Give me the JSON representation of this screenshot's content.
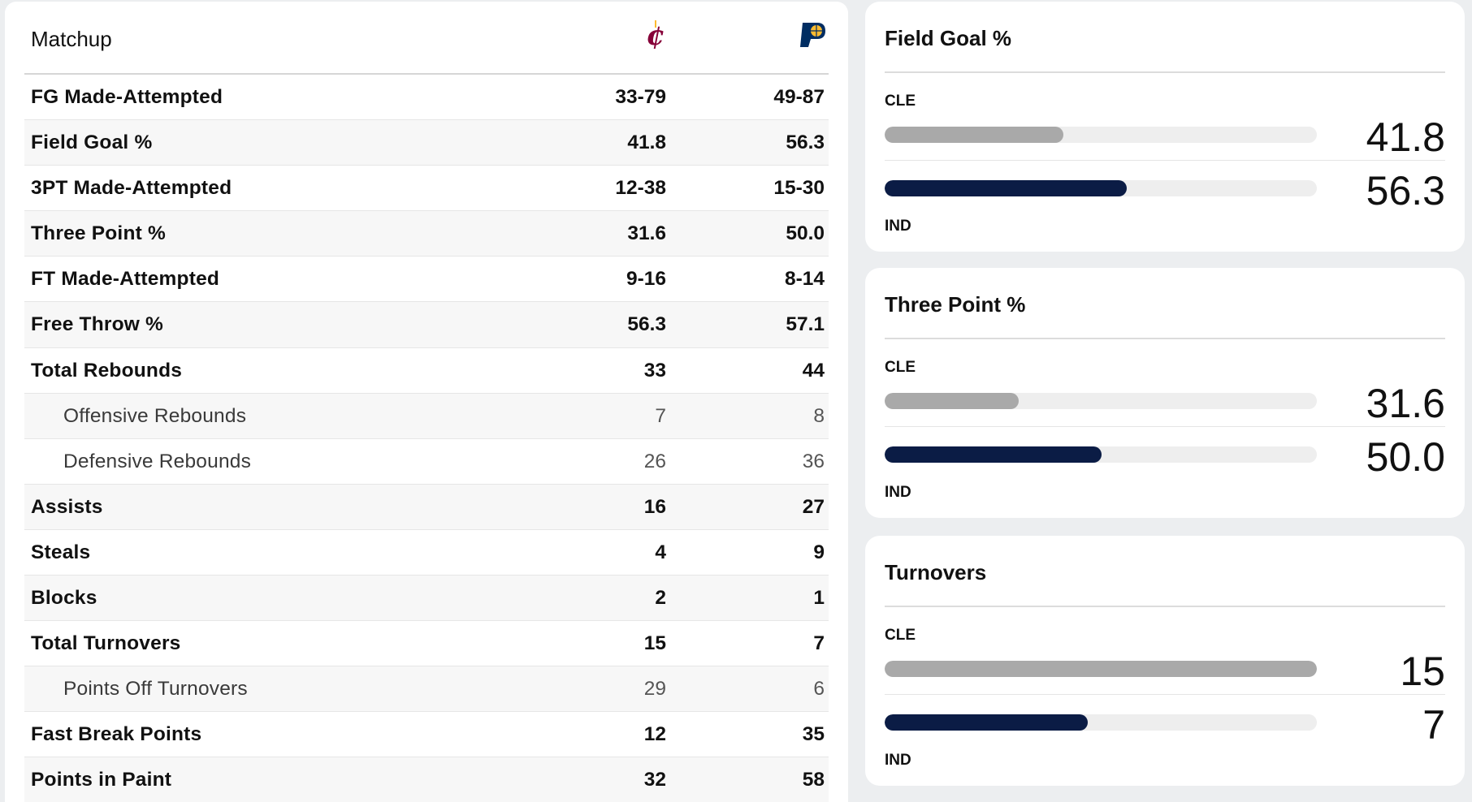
{
  "matchup": {
    "title": "Matchup",
    "teams": [
      {
        "abbr": "CLE",
        "logo": "cavaliers-logo",
        "color": "#860038"
      },
      {
        "abbr": "IND",
        "logo": "pacers-logo",
        "color": "#002d62"
      }
    ],
    "rows": [
      {
        "label": "FG Made-Attempted",
        "cle": "33-79",
        "ind": "49-87",
        "sub": false
      },
      {
        "label": "Field Goal %",
        "cle": "41.8",
        "ind": "56.3",
        "sub": false
      },
      {
        "label": "3PT Made-Attempted",
        "cle": "12-38",
        "ind": "15-30",
        "sub": false
      },
      {
        "label": "Three Point %",
        "cle": "31.6",
        "ind": "50.0",
        "sub": false
      },
      {
        "label": "FT Made-Attempted",
        "cle": "9-16",
        "ind": "8-14",
        "sub": false
      },
      {
        "label": "Free Throw %",
        "cle": "56.3",
        "ind": "57.1",
        "sub": false
      },
      {
        "label": "Total Rebounds",
        "cle": "33",
        "ind": "44",
        "sub": false
      },
      {
        "label": "Offensive Rebounds",
        "cle": "7",
        "ind": "8",
        "sub": true
      },
      {
        "label": "Defensive Rebounds",
        "cle": "26",
        "ind": "36",
        "sub": true
      },
      {
        "label": "Assists",
        "cle": "16",
        "ind": "27",
        "sub": false
      },
      {
        "label": "Steals",
        "cle": "4",
        "ind": "9",
        "sub": false
      },
      {
        "label": "Blocks",
        "cle": "2",
        "ind": "1",
        "sub": false
      },
      {
        "label": "Total Turnovers",
        "cle": "15",
        "ind": "7",
        "sub": false
      },
      {
        "label": "Points Off Turnovers",
        "cle": "29",
        "ind": "6",
        "sub": true
      },
      {
        "label": "Fast Break Points",
        "cle": "12",
        "ind": "35",
        "sub": false
      },
      {
        "label": "Points in Paint",
        "cle": "32",
        "ind": "58",
        "sub": false
      }
    ]
  },
  "cards": [
    {
      "title": "Field Goal %",
      "team1": "CLE",
      "team2": "IND",
      "value1": "41.8",
      "value2": "56.3",
      "fill1": 0.413,
      "fill2": 0.561
    },
    {
      "title": "Three Point %",
      "team1": "CLE",
      "team2": "IND",
      "value1": "31.6",
      "value2": "50.0",
      "fill1": 0.311,
      "fill2": 0.501
    },
    {
      "title": "Turnovers",
      "team1": "CLE",
      "team2": "IND",
      "value1": "15",
      "value2": "7",
      "fill1": 1.0,
      "fill2": 0.47
    }
  ],
  "colors": {
    "bar_team1": "#a9a9a9",
    "bar_team2": "#0b1c45",
    "bar_track": "#eeeeee"
  }
}
